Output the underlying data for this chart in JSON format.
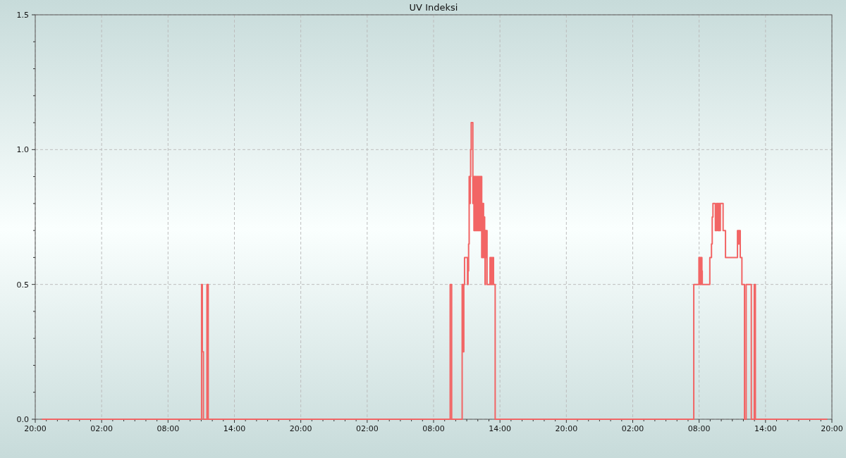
{
  "chart_data": {
    "type": "step",
    "title": "UV Indeksi",
    "x": [
      "2000-01-01T20:36",
      "2000-01-02T11:02",
      "2000-01-02T11:06",
      "2000-01-02T11:12",
      "2000-01-02T11:31",
      "2000-01-02T11:38",
      "2000-01-03T09:30",
      "2000-01-03T09:38",
      "2000-01-03T10:35",
      "2000-01-03T10:41",
      "2000-01-03T10:44",
      "2000-01-03T10:48",
      "2000-01-03T11:04",
      "2000-01-03T11:07",
      "2000-01-03T11:10",
      "2000-01-03T11:13",
      "2000-01-03T11:16",
      "2000-01-03T11:19",
      "2000-01-03T11:21",
      "2000-01-03T11:24",
      "2000-01-03T11:33",
      "2000-01-03T11:36",
      "2000-01-03T11:39",
      "2000-01-03T11:42",
      "2000-01-03T11:46",
      "2000-01-03T11:49",
      "2000-01-03T11:53",
      "2000-01-03T11:57",
      "2000-01-03T12:01",
      "2000-01-03T12:05",
      "2000-01-03T12:08",
      "2000-01-03T12:12",
      "2000-01-03T12:16",
      "2000-01-03T12:19",
      "2000-01-03T12:21",
      "2000-01-03T12:24",
      "2000-01-03T12:26",
      "2000-01-03T12:29",
      "2000-01-03T12:31",
      "2000-01-03T12:34",
      "2000-01-03T12:37",
      "2000-01-03T12:39",
      "2000-01-03T12:41",
      "2000-01-03T12:45",
      "2000-01-03T12:47",
      "2000-01-03T12:50",
      "2000-01-03T13:06",
      "2000-01-03T13:10",
      "2000-01-03T13:14",
      "2000-01-03T13:17",
      "2000-01-03T13:21",
      "2000-01-03T13:25",
      "2000-01-03T13:34",
      "2000-01-04T07:31",
      "2000-01-04T07:59",
      "2000-01-04T08:02",
      "2000-01-04T08:05",
      "2000-01-04T08:08",
      "2000-01-04T08:11",
      "2000-01-04T08:15",
      "2000-01-04T08:17",
      "2000-01-04T08:58",
      "2000-01-04T09:07",
      "2000-01-04T09:11",
      "2000-01-04T09:15",
      "2000-01-04T09:28",
      "2000-01-04T09:35",
      "2000-01-04T09:41",
      "2000-01-04T09:46",
      "2000-01-04T09:50",
      "2000-01-04T09:55",
      "2000-01-04T10:10",
      "2000-01-04T10:23",
      "2000-01-04T11:28",
      "2000-01-04T11:34",
      "2000-01-04T11:37",
      "2000-01-04T11:43",
      "2000-01-04T11:52",
      "2000-01-04T12:06",
      "2000-01-04T12:15",
      "2000-01-04T12:43",
      "2000-01-04T12:59",
      "2000-01-04T13:05",
      "2000-01-04T19:35"
    ],
    "values": [
      0,
      0.5,
      0.25,
      0,
      0.5,
      0,
      0.5,
      0,
      0.5,
      0.25,
      0.5,
      0.6,
      0.5,
      0.55,
      0.65,
      0.9,
      0.8,
      0.9,
      1.0,
      1.1,
      0.8,
      0.9,
      0.7,
      0.9,
      0.7,
      0.9,
      0.7,
      0.9,
      0.7,
      0.9,
      0.7,
      0.9,
      0.7,
      0.9,
      0.6,
      0.8,
      0.6,
      0.8,
      0.6,
      0.75,
      0.6,
      0.5,
      0.7,
      0.6,
      0.7,
      0.5,
      0.6,
      0.5,
      0.6,
      0.5,
      0.6,
      0.5,
      0,
      0.5,
      0.6,
      0.5,
      0.6,
      0.5,
      0.6,
      0.55,
      0.5,
      0.6,
      0.65,
      0.75,
      0.8,
      0.7,
      0.8,
      0.7,
      0.8,
      0.7,
      0.8,
      0.7,
      0.6,
      0.7,
      0.65,
      0.7,
      0.6,
      0.5,
      0,
      0.5,
      0,
      0.5,
      0,
      0
    ],
    "color": "#f26565",
    "xlim": [
      "2000-01-01T20:00",
      "2000-01-04T20:00"
    ],
    "xticks": [
      {
        "value": "2000-01-01T20:00",
        "label": "20:00"
      },
      {
        "value": "2000-01-01T21:00",
        "label": null
      },
      {
        "value": "2000-01-01T22:00",
        "label": null
      },
      {
        "value": "2000-01-01T23:00",
        "label": null
      },
      {
        "value": "2000-01-02T00:00",
        "label": null
      },
      {
        "value": "2000-01-02T01:00",
        "label": null
      },
      {
        "value": "2000-01-02T02:00",
        "label": "02:00"
      },
      {
        "value": "2000-01-02T03:00",
        "label": null
      },
      {
        "value": "2000-01-02T04:00",
        "label": null
      },
      {
        "value": "2000-01-02T05:00",
        "label": null
      },
      {
        "value": "2000-01-02T06:00",
        "label": null
      },
      {
        "value": "2000-01-02T07:00",
        "label": null
      },
      {
        "value": "2000-01-02T08:00",
        "label": "08:00"
      },
      {
        "value": "2000-01-02T09:00",
        "label": null
      },
      {
        "value": "2000-01-02T10:00",
        "label": null
      },
      {
        "value": "2000-01-02T11:00",
        "label": null
      },
      {
        "value": "2000-01-02T12:00",
        "label": null
      },
      {
        "value": "2000-01-02T13:00",
        "label": null
      },
      {
        "value": "2000-01-02T14:00",
        "label": "14:00"
      },
      {
        "value": "2000-01-02T15:00",
        "label": null
      },
      {
        "value": "2000-01-02T16:00",
        "label": null
      },
      {
        "value": "2000-01-02T17:00",
        "label": null
      },
      {
        "value": "2000-01-02T18:00",
        "label": null
      },
      {
        "value": "2000-01-02T19:00",
        "label": null
      },
      {
        "value": "2000-01-02T20:00",
        "label": "20:00"
      },
      {
        "value": "2000-01-02T21:00",
        "label": null
      },
      {
        "value": "2000-01-02T22:00",
        "label": null
      },
      {
        "value": "2000-01-02T23:00",
        "label": null
      },
      {
        "value": "2000-01-03T00:00",
        "label": null
      },
      {
        "value": "2000-01-03T01:00",
        "label": null
      },
      {
        "value": "2000-01-03T02:00",
        "label": "02:00"
      },
      {
        "value": "2000-01-03T03:00",
        "label": null
      },
      {
        "value": "2000-01-03T04:00",
        "label": null
      },
      {
        "value": "2000-01-03T05:00",
        "label": null
      },
      {
        "value": "2000-01-03T06:00",
        "label": null
      },
      {
        "value": "2000-01-03T07:00",
        "label": null
      },
      {
        "value": "2000-01-03T08:00",
        "label": "08:00"
      },
      {
        "value": "2000-01-03T09:00",
        "label": null
      },
      {
        "value": "2000-01-03T10:00",
        "label": null
      },
      {
        "value": "2000-01-03T11:00",
        "label": null
      },
      {
        "value": "2000-01-03T12:00",
        "label": null
      },
      {
        "value": "2000-01-03T13:00",
        "label": null
      },
      {
        "value": "2000-01-03T14:00",
        "label": "14:00"
      },
      {
        "value": "2000-01-03T15:00",
        "label": null
      },
      {
        "value": "2000-01-03T16:00",
        "label": null
      },
      {
        "value": "2000-01-03T17:00",
        "label": null
      },
      {
        "value": "2000-01-03T18:00",
        "label": null
      },
      {
        "value": "2000-01-03T19:00",
        "label": null
      },
      {
        "value": "2000-01-03T20:00",
        "label": "20:00"
      },
      {
        "value": "2000-01-03T21:00",
        "label": null
      },
      {
        "value": "2000-01-03T22:00",
        "label": null
      },
      {
        "value": "2000-01-03T23:00",
        "label": null
      },
      {
        "value": "2000-01-04T00:00",
        "label": null
      },
      {
        "value": "2000-01-04T01:00",
        "label": null
      },
      {
        "value": "2000-01-04T02:00",
        "label": "02:00"
      },
      {
        "value": "2000-01-04T03:00",
        "label": null
      },
      {
        "value": "2000-01-04T04:00",
        "label": null
      },
      {
        "value": "2000-01-04T05:00",
        "label": null
      },
      {
        "value": "2000-01-04T06:00",
        "label": null
      },
      {
        "value": "2000-01-04T07:00",
        "label": null
      },
      {
        "value": "2000-01-04T08:00",
        "label": "08:00"
      },
      {
        "value": "2000-01-04T09:00",
        "label": null
      },
      {
        "value": "2000-01-04T10:00",
        "label": null
      },
      {
        "value": "2000-01-04T11:00",
        "label": null
      },
      {
        "value": "2000-01-04T12:00",
        "label": null
      },
      {
        "value": "2000-01-04T13:00",
        "label": null
      },
      {
        "value": "2000-01-04T14:00",
        "label": "14:00"
      },
      {
        "value": "2000-01-04T15:00",
        "label": null
      },
      {
        "value": "2000-01-04T16:00",
        "label": null
      },
      {
        "value": "2000-01-04T17:00",
        "label": null
      },
      {
        "value": "2000-01-04T18:00",
        "label": null
      },
      {
        "value": "2000-01-04T19:00",
        "label": null
      },
      {
        "value": "2000-01-04T20:00",
        "label": "20:00"
      }
    ],
    "ylim": [
      0,
      1.5
    ],
    "yticks": [
      {
        "value": 0,
        "label": "0.0"
      },
      {
        "value": 0.1,
        "label": null
      },
      {
        "value": 0.2,
        "label": null
      },
      {
        "value": 0.3,
        "label": null
      },
      {
        "value": 0.4,
        "label": null
      },
      0.5,
      {
        "value": 0.6,
        "label": null
      },
      {
        "value": 0.7,
        "label": null
      },
      {
        "value": 0.8,
        "label": null
      },
      {
        "value": 0.9,
        "label": null
      },
      {
        "value": 1,
        "label": "1.0"
      },
      {
        "value": 1.1,
        "label": null
      },
      {
        "value": 1.2,
        "label": null
      },
      {
        "value": 1.3,
        "label": null
      },
      {
        "value": 1.4,
        "label": null
      },
      1.5
    ],
    "grid": true
  }
}
